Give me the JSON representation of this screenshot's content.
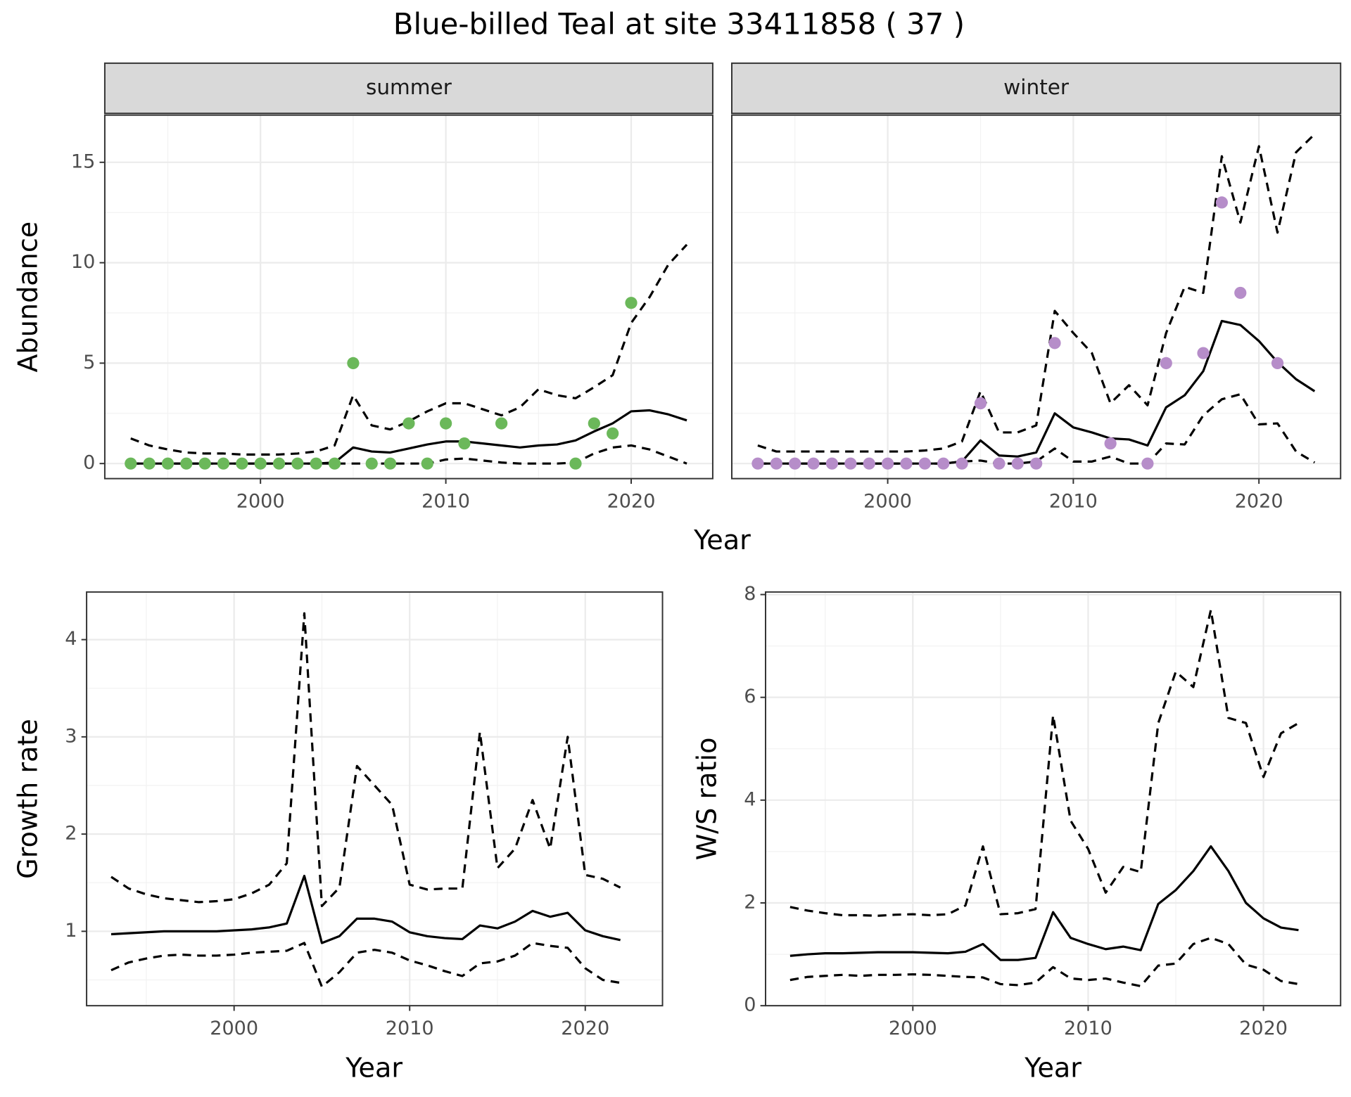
{
  "title": "Blue-billed Teal at site 33411858 ( 37 )",
  "chart_data": [
    {
      "type": "line",
      "facet": "summer",
      "ylabel": "Abundance",
      "xlabel": "Year",
      "x": [
        1993,
        1994,
        1995,
        1996,
        1997,
        1998,
        1999,
        2000,
        2001,
        2002,
        2003,
        2004,
        2005,
        2006,
        2007,
        2008,
        2009,
        2010,
        2011,
        2012,
        2013,
        2014,
        2015,
        2016,
        2017,
        2018,
        2019,
        2020,
        2021,
        2022,
        2023
      ],
      "xlim": [
        1991.6,
        2024.4
      ],
      "xticks": [
        2000,
        2010,
        2020
      ],
      "ylim": [
        -0.75,
        17.35
      ],
      "yticks": [
        0,
        5,
        10,
        15
      ],
      "grid": true,
      "minor_grid": true,
      "series": [
        {
          "style": "dashed",
          "color": "#000000",
          "values": [
            1.25,
            0.9,
            0.7,
            0.55,
            0.5,
            0.5,
            0.45,
            0.45,
            0.45,
            0.5,
            0.6,
            0.9,
            3.4,
            1.9,
            1.7,
            2.1,
            2.6,
            3.0,
            3.0,
            2.7,
            2.4,
            2.8,
            3.7,
            3.4,
            3.25,
            3.8,
            4.4,
            7.0,
            8.3,
            9.9,
            10.9
          ]
        },
        {
          "style": "dashed",
          "color": "#000000",
          "values": [
            0,
            0,
            0,
            0,
            0,
            0,
            0,
            0,
            0,
            0,
            0,
            0,
            0,
            0,
            0,
            0,
            0,
            0.2,
            0.25,
            0.15,
            0.05,
            0,
            0,
            0,
            0.05,
            0.5,
            0.8,
            0.9,
            0.7,
            0.35,
            0
          ]
        },
        {
          "style": "solid",
          "color": "#000000",
          "values": [
            0,
            0,
            0,
            0,
            0,
            0,
            0,
            0,
            0,
            0,
            0,
            0.05,
            0.8,
            0.6,
            0.55,
            0.75,
            0.95,
            1.1,
            1.1,
            1.0,
            0.9,
            0.8,
            0.9,
            0.95,
            1.15,
            1.6,
            2.0,
            2.6,
            2.65,
            2.45,
            2.15
          ]
        },
        {
          "style": "points",
          "color": "#6bb85a",
          "values": [
            0,
            0,
            0,
            0,
            0,
            0,
            0,
            0,
            0,
            0,
            0,
            0,
            5,
            0,
            0,
            2,
            0,
            2,
            1,
            null,
            2,
            null,
            null,
            null,
            0,
            2,
            1.5,
            8,
            null,
            null,
            null
          ]
        }
      ]
    },
    {
      "type": "line",
      "facet": "winter",
      "ytick_labels": false,
      "x": [
        1993,
        1994,
        1995,
        1996,
        1997,
        1998,
        1999,
        2000,
        2001,
        2002,
        2003,
        2004,
        2005,
        2006,
        2007,
        2008,
        2009,
        2010,
        2011,
        2012,
        2013,
        2014,
        2015,
        2016,
        2017,
        2018,
        2019,
        2020,
        2021,
        2022,
        2023
      ],
      "xlim": [
        1991.6,
        2024.4
      ],
      "xticks": [
        2000,
        2010,
        2020
      ],
      "ylim": [
        -0.75,
        17.35
      ],
      "yticks": [
        0,
        5,
        10,
        15
      ],
      "grid": true,
      "minor_grid": true,
      "series": [
        {
          "style": "dashed",
          "color": "#000000",
          "values": [
            0.9,
            0.6,
            0.6,
            0.6,
            0.6,
            0.6,
            0.6,
            0.6,
            0.6,
            0.65,
            0.75,
            1.1,
            3.6,
            1.55,
            1.55,
            1.9,
            7.6,
            6.5,
            5.5,
            3.0,
            3.9,
            2.9,
            6.5,
            8.8,
            8.5,
            15.3,
            12.0,
            15.8,
            11.5,
            15.5,
            16.4
          ]
        },
        {
          "style": "dashed",
          "color": "#000000",
          "values": [
            0,
            0,
            0,
            0,
            0,
            0,
            0,
            0,
            0,
            0,
            0,
            0.1,
            0.15,
            0,
            0,
            0.1,
            0.75,
            0.1,
            0.1,
            0.35,
            0,
            0,
            1.0,
            0.95,
            2.4,
            3.2,
            3.45,
            1.95,
            2.0,
            0.6,
            0.05
          ]
        },
        {
          "style": "solid",
          "color": "#000000",
          "values": [
            0,
            0,
            0,
            0,
            0,
            0,
            0,
            0,
            0,
            0,
            0,
            0.1,
            1.15,
            0.4,
            0.35,
            0.55,
            2.5,
            1.8,
            1.55,
            1.25,
            1.2,
            0.9,
            2.8,
            3.4,
            4.6,
            7.1,
            6.9,
            6.1,
            5.05,
            4.2,
            3.6
          ]
        },
        {
          "style": "points",
          "color": "#b68dc9",
          "values": [
            0,
            0,
            0,
            0,
            0,
            0,
            0,
            0,
            0,
            0,
            0,
            0,
            3,
            0,
            0,
            0,
            6,
            null,
            null,
            1,
            null,
            0,
            5,
            null,
            5.5,
            13,
            8.5,
            null,
            5,
            null,
            null
          ]
        }
      ]
    },
    {
      "type": "line",
      "ylabel": "Growth rate",
      "xlabel": "Year",
      "x": [
        1993,
        1994,
        1995,
        1996,
        1997,
        1998,
        1999,
        2000,
        2001,
        2002,
        2003,
        2004,
        2005,
        2006,
        2007,
        2008,
        2009,
        2010,
        2011,
        2012,
        2013,
        2014,
        2015,
        2016,
        2017,
        2018,
        2019,
        2020,
        2021,
        2022
      ],
      "xlim": [
        1991.6,
        2024.4
      ],
      "xticks": [
        2000,
        2010,
        2020
      ],
      "ylim": [
        0.235,
        4.49
      ],
      "yticks": [
        1,
        2,
        3,
        4
      ],
      "grid": true,
      "minor_grid": true,
      "series": [
        {
          "style": "dashed",
          "color": "#000000",
          "values": [
            1.56,
            1.44,
            1.38,
            1.34,
            1.32,
            1.3,
            1.31,
            1.33,
            1.39,
            1.48,
            1.7,
            4.27,
            1.26,
            1.45,
            2.7,
            2.5,
            2.3,
            1.48,
            1.43,
            1.44,
            1.44,
            3.05,
            1.65,
            1.85,
            2.35,
            1.85,
            3.0,
            1.58,
            1.54,
            1.45
          ]
        },
        {
          "style": "dashed",
          "color": "#000000",
          "values": [
            0.6,
            0.68,
            0.72,
            0.75,
            0.76,
            0.75,
            0.75,
            0.76,
            0.78,
            0.79,
            0.8,
            0.88,
            0.43,
            0.58,
            0.78,
            0.81,
            0.78,
            0.7,
            0.65,
            0.59,
            0.54,
            0.67,
            0.69,
            0.75,
            0.88,
            0.85,
            0.83,
            0.62,
            0.5,
            0.47
          ]
        },
        {
          "style": "solid",
          "color": "#000000",
          "values": [
            0.97,
            0.98,
            0.99,
            1.0,
            1.0,
            1.0,
            1.0,
            1.01,
            1.02,
            1.04,
            1.08,
            1.57,
            0.88,
            0.95,
            1.13,
            1.13,
            1.1,
            0.99,
            0.95,
            0.93,
            0.92,
            1.06,
            1.03,
            1.1,
            1.21,
            1.15,
            1.19,
            1.01,
            0.95,
            0.91
          ]
        }
      ]
    },
    {
      "type": "line",
      "ylabel": "W/S ratio",
      "xlabel": "Year",
      "x": [
        1993,
        1994,
        1995,
        1996,
        1997,
        1998,
        1999,
        2000,
        2001,
        2002,
        2003,
        2004,
        2005,
        2006,
        2007,
        2008,
        2009,
        2010,
        2011,
        2012,
        2013,
        2014,
        2015,
        2016,
        2017,
        2018,
        2019,
        2020,
        2021,
        2022
      ],
      "xlim": [
        1991.6,
        2024.4
      ],
      "xticks": [
        2000,
        2010,
        2020
      ],
      "ylim": [
        0,
        8.05
      ],
      "yticks": [
        0,
        2,
        4,
        6,
        8
      ],
      "grid": true,
      "minor_grid": true,
      "series": [
        {
          "style": "dashed",
          "color": "#000000",
          "values": [
            1.92,
            1.85,
            1.8,
            1.76,
            1.76,
            1.75,
            1.77,
            1.78,
            1.76,
            1.78,
            1.95,
            3.1,
            1.78,
            1.8,
            1.88,
            5.65,
            3.6,
            3.05,
            2.2,
            2.7,
            2.6,
            5.5,
            6.5,
            6.2,
            7.7,
            5.6,
            5.5,
            4.45,
            5.3,
            5.5
          ]
        },
        {
          "style": "dashed",
          "color": "#000000",
          "values": [
            0.5,
            0.56,
            0.58,
            0.6,
            0.58,
            0.6,
            0.6,
            0.61,
            0.6,
            0.58,
            0.56,
            0.55,
            0.42,
            0.4,
            0.45,
            0.75,
            0.53,
            0.5,
            0.53,
            0.45,
            0.38,
            0.78,
            0.82,
            1.2,
            1.32,
            1.2,
            0.8,
            0.7,
            0.48,
            0.42
          ]
        },
        {
          "style": "solid",
          "color": "#000000",
          "values": [
            0.97,
            1.0,
            1.02,
            1.02,
            1.03,
            1.04,
            1.04,
            1.04,
            1.03,
            1.02,
            1.05,
            1.2,
            0.89,
            0.89,
            0.93,
            1.82,
            1.32,
            1.2,
            1.1,
            1.15,
            1.08,
            1.98,
            2.25,
            2.62,
            3.1,
            2.62,
            2.0,
            1.7,
            1.52,
            1.47
          ]
        }
      ]
    }
  ]
}
